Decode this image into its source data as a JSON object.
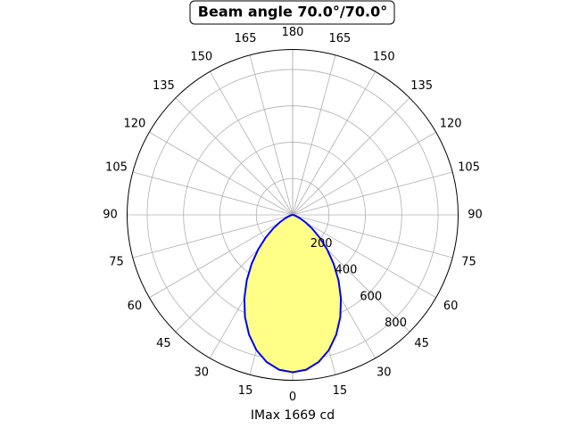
{
  "chart_data": {
    "type": "polar",
    "title": "Beam angle 70.0°/70.0°",
    "xlabel": "IMax 1669 cd",
    "x": [
      -90,
      -85,
      -80,
      -75,
      -70,
      -65,
      -60,
      -55,
      -50,
      -45,
      -40,
      -35,
      -30,
      -25,
      -20,
      -15,
      -10,
      -5,
      0,
      5,
      10,
      15,
      20,
      25,
      30,
      35,
      40,
      45,
      50,
      55,
      60,
      65,
      70,
      75,
      80,
      85,
      90
    ],
    "series": [
      {
        "color": "#0000ee",
        "fill": "#ffff88",
        "values": [
          0,
          0,
          3,
          9,
          22,
          46,
          82,
          131,
          193,
          267,
          350,
          440,
          531,
          620,
          701,
          770,
          822,
          855,
          866,
          855,
          822,
          770,
          701,
          620,
          531,
          440,
          350,
          267,
          193,
          131,
          82,
          46,
          22,
          9,
          3,
          0,
          0
        ]
      }
    ],
    "rlim": [
      0,
      910
    ],
    "rticks": [
      200,
      400,
      600,
      800
    ],
    "thetaticks": [
      0,
      15,
      30,
      45,
      60,
      75,
      90,
      105,
      120,
      135,
      150,
      165,
      180
    ],
    "grid": true
  }
}
